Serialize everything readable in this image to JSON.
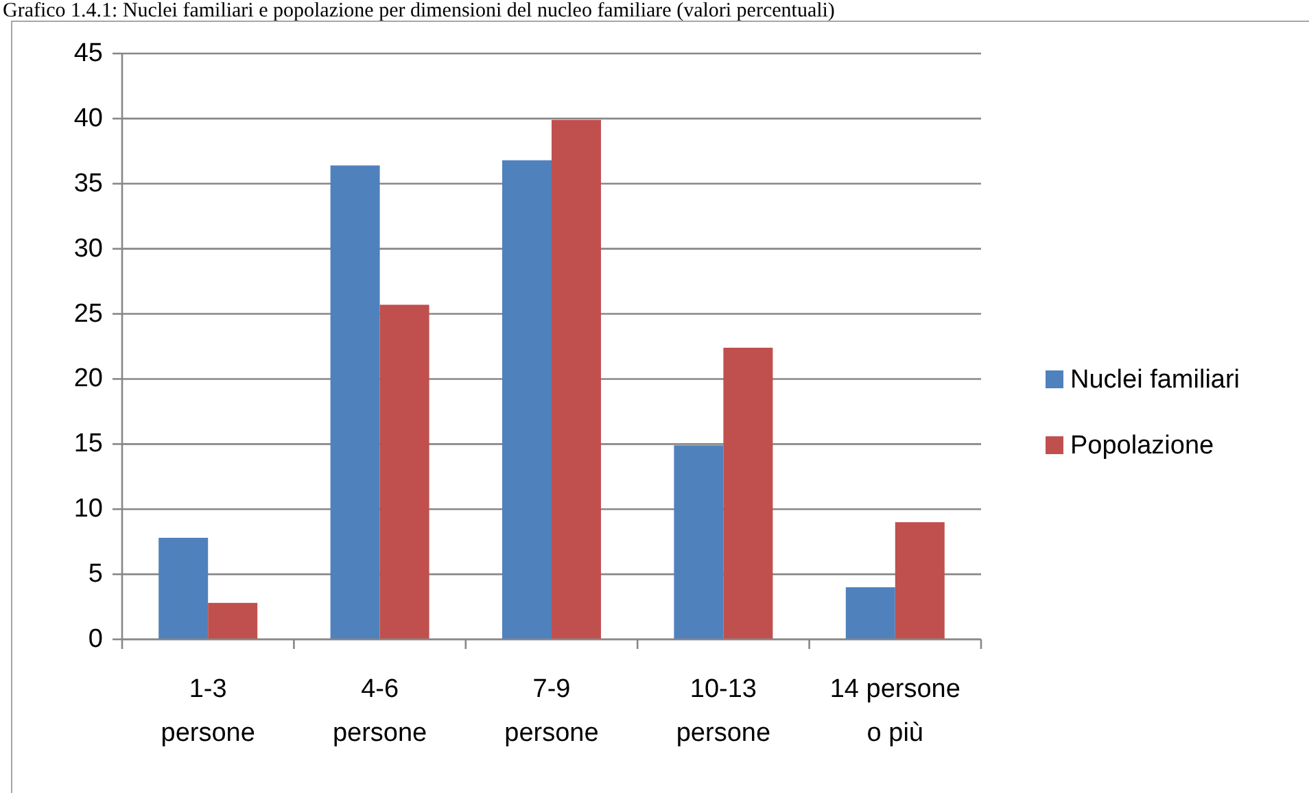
{
  "chart_data": {
    "type": "bar",
    "title": "Grafico 1.4.1: Nuclei familiari e popolazione per dimensioni del nucleo familiare (valori percentuali)",
    "categories": [
      "1-3 persone",
      "4-6 persone",
      "7-9 persone",
      "10-13 persone",
      "14 persone o più"
    ],
    "series": [
      {
        "name": "Nuclei familiari",
        "color": "#4f81bd",
        "values": [
          7.8,
          36.4,
          36.8,
          14.9,
          4.0
        ]
      },
      {
        "name": "Popolazione",
        "color": "#c0504d",
        "values": [
          2.8,
          25.7,
          39.9,
          22.4,
          9.0
        ]
      }
    ],
    "ylim": [
      0,
      45
    ],
    "yticks": [
      0,
      5,
      10,
      15,
      20,
      25,
      30,
      35,
      40,
      45
    ],
    "grid": "y",
    "legend": "right"
  }
}
